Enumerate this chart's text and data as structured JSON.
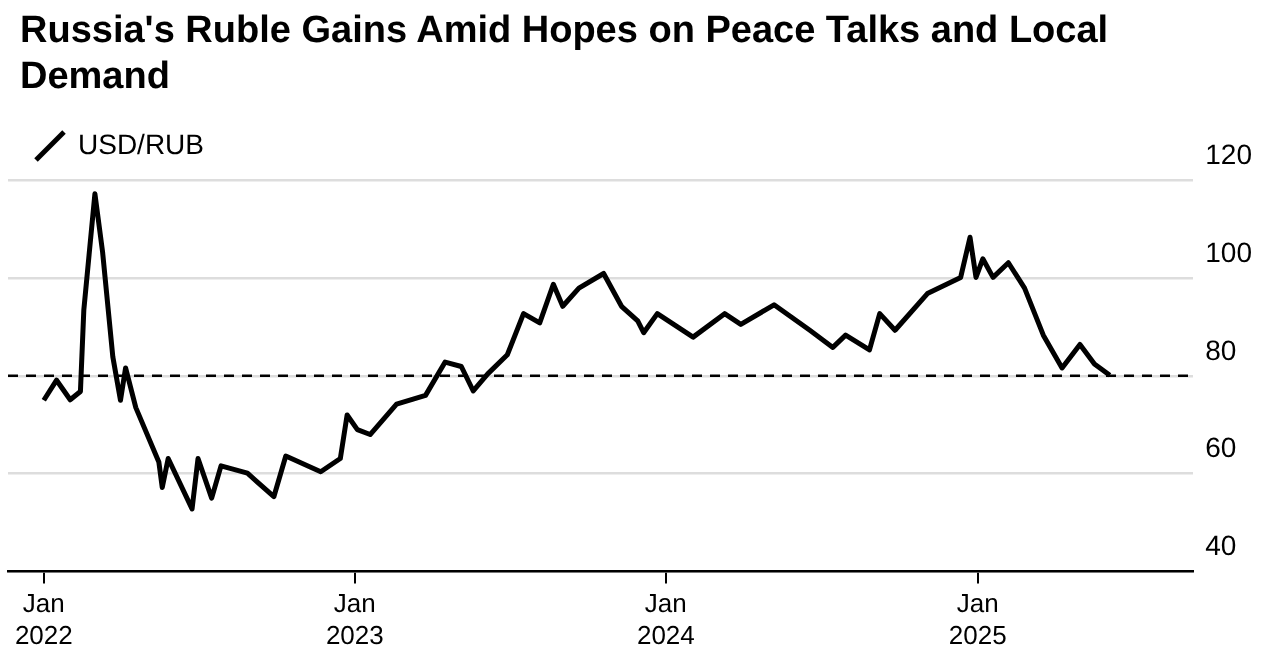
{
  "chart_data": {
    "type": "line",
    "title": "Russia's Ruble Gains Amid Hopes on Peace Talks and Local Demand",
    "legend": "top left",
    "grid": "y",
    "marker": "none",
    "line_style": "solid",
    "xlim": [
      "2021-11-20",
      "2025-09-11"
    ],
    "xticks": [
      {
        "value": "2022-01-01",
        "label": "Jan\n2022"
      },
      {
        "value": "2023-01-01",
        "label": "Jan\n2023"
      },
      {
        "value": "2024-01-01",
        "label": "Jan\n2024"
      },
      {
        "value": "2025-01-01",
        "label": "Jan\n2025"
      }
    ],
    "ylim": [
      40,
      120
    ],
    "yticks": [
      40,
      60,
      80,
      100,
      120
    ],
    "ref_lines": [
      {
        "axis": "y",
        "value": 80,
        "line_style": "dashed",
        "color": "#000000"
      }
    ],
    "x": [
      "2022-01-01",
      "2022-01-16",
      "2022-02-01",
      "2022-02-13",
      "2022-02-17",
      "2022-03-02",
      "2022-03-11",
      "2022-03-23",
      "2022-04-01",
      "2022-04-07",
      "2022-04-19",
      "2022-05-16",
      "2022-05-20",
      "2022-05-27",
      "2022-06-24",
      "2022-07-01",
      "2022-07-17",
      "2022-07-28",
      "2022-08-28",
      "2022-09-28",
      "2022-10-12",
      "2022-11-22",
      "2022-12-15",
      "2022-12-23",
      "2023-01-04",
      "2023-01-19",
      "2023-02-19",
      "2023-03-25",
      "2023-04-17",
      "2023-05-06",
      "2023-05-20",
      "2023-06-06",
      "2023-06-29",
      "2023-07-18",
      "2023-08-06",
      "2023-08-22",
      "2023-09-02",
      "2023-09-21",
      "2023-10-20",
      "2023-11-10",
      "2023-11-29",
      "2023-12-06",
      "2023-12-22",
      "2024-02-02",
      "2024-03-10",
      "2024-03-29",
      "2024-05-07",
      "2024-06-18",
      "2024-07-15",
      "2024-07-30",
      "2024-08-27",
      "2024-09-08",
      "2024-09-26",
      "2024-11-03",
      "2024-12-12",
      "2024-12-23",
      "2024-12-30",
      "2025-01-07",
      "2025-01-19",
      "2025-02-06",
      "2025-02-25",
      "2025-03-19",
      "2025-04-10",
      "2025-05-01",
      "2025-05-18",
      "2025-06-05"
    ],
    "series": [
      {
        "name": "USD/RUB",
        "color": "#000000",
        "values": [
          75.0,
          79.1,
          75.1,
          76.8,
          93.5,
          117.2,
          105.3,
          83.9,
          75.0,
          81.6,
          73.5,
          62.4,
          57.2,
          63.1,
          52.8,
          63.1,
          55.0,
          61.6,
          60.1,
          55.3,
          63.6,
          60.4,
          63.1,
          72.0,
          69.0,
          68.0,
          74.2,
          76.0,
          82.8,
          81.9,
          76.9,
          80.4,
          84.3,
          92.7,
          90.8,
          98.7,
          94.2,
          97.9,
          100.9,
          94.2,
          91.2,
          88.8,
          92.7,
          87.9,
          92.7,
          90.5,
          94.5,
          89.3,
          85.8,
          88.3,
          85.3,
          92.7,
          89.3,
          96.8,
          100.1,
          108.3,
          100.1,
          103.9,
          100.1,
          103.1,
          97.9,
          88.3,
          81.6,
          86.4,
          82.4,
          80.1
        ]
      }
    ]
  }
}
